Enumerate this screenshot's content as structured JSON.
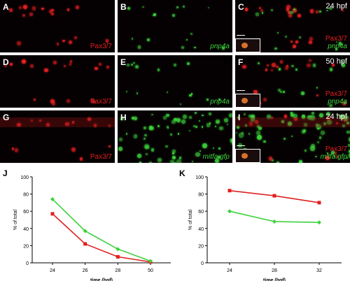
{
  "panels": [
    {
      "id": "A",
      "tags": [
        "Pax3/7"
      ],
      "time": "",
      "channels": [
        "red"
      ],
      "inset": false
    },
    {
      "id": "B",
      "tags": [
        "pnp4a"
      ],
      "time": "",
      "channels": [
        "green"
      ],
      "inset": false
    },
    {
      "id": "C",
      "tags": [
        "Pax3/7",
        "pnp4a"
      ],
      "time": "24 hpf",
      "channels": [
        "red",
        "green"
      ],
      "inset": true
    },
    {
      "id": "D",
      "tags": [
        "Pax3/7"
      ],
      "time": "",
      "channels": [
        "red"
      ],
      "inset": false
    },
    {
      "id": "E",
      "tags": [
        "pnp4a"
      ],
      "time": "",
      "channels": [
        "green"
      ],
      "inset": false
    },
    {
      "id": "F",
      "tags": [
        "Pax3/7",
        "pnp4a"
      ],
      "time": "50 hpf",
      "channels": [
        "red",
        "green"
      ],
      "inset": true
    },
    {
      "id": "G",
      "tags": [
        "Pax3/7"
      ],
      "time": "",
      "channels": [
        "red"
      ],
      "inset": false
    },
    {
      "id": "H",
      "tags": [
        "mitfa:gfp"
      ],
      "time": "",
      "channels": [
        "green"
      ],
      "inset": false
    },
    {
      "id": "I",
      "tags": [
        "Pax3/7",
        "mitfa:gfp"
      ],
      "time": "24 hpf",
      "channels": [
        "red",
        "green"
      ],
      "inset": true
    }
  ],
  "colors": {
    "red": "#e02020",
    "green": "#3cd23c"
  },
  "chart_data": [
    {
      "panel": "J",
      "type": "line",
      "categories": [
        "24",
        "26",
        "28",
        "50"
      ],
      "xlabel": "time (hpf)",
      "ylabel": "% of total",
      "ylim": [
        0,
        100
      ],
      "yticks": [
        0,
        20,
        40,
        60,
        80,
        100
      ],
      "series": [
        {
          "color": "#e02020",
          "marker": "square",
          "values": [
            57,
            22,
            7,
            1
          ]
        },
        {
          "color": "#3cd23c",
          "marker": "diamond",
          "values": [
            74,
            37,
            16,
            2
          ]
        }
      ]
    },
    {
      "panel": "K",
      "type": "line",
      "categories": [
        "24",
        "28",
        "32"
      ],
      "xlabel": "time (hpf)",
      "ylabel": "% of total",
      "ylim": [
        0,
        100
      ],
      "yticks": [
        0,
        20,
        40,
        60,
        80,
        100
      ],
      "series": [
        {
          "color": "#e02020",
          "marker": "square",
          "values": [
            84,
            78,
            70
          ]
        },
        {
          "color": "#3cd23c",
          "marker": "diamond",
          "values": [
            60,
            48,
            47
          ]
        }
      ]
    }
  ]
}
